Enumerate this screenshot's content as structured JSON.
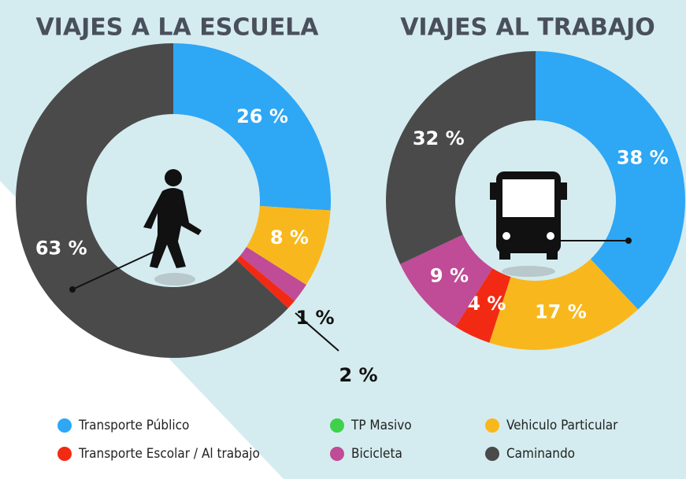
{
  "chart_data": [
    {
      "type": "pie",
      "title": "VIAJES A LA ESCUELA",
      "values": [
        26,
        8,
        2,
        1,
        63
      ],
      "value_labels": [
        "26 %",
        "8 %",
        "2 %",
        "1 %",
        "63 %"
      ],
      "colors": [
        "#2ea7f5",
        "#f8b81d",
        "#c04b96",
        "#f22a14",
        "#4a4a4a"
      ]
    },
    {
      "type": "pie",
      "title": "VIAJES AL TRABAJO",
      "values": [
        38,
        17,
        4,
        9,
        32
      ],
      "value_labels": [
        "38 %",
        "17 %",
        "4 %",
        "9 %",
        "32 %"
      ],
      "colors": [
        "#2ea7f5",
        "#f8b81d",
        "#f22a14",
        "#c04b96",
        "#4a4a4a"
      ]
    }
  ],
  "legend": [
    {
      "name": "Transporte Público",
      "color": "#2ea7f5"
    },
    {
      "name": "TP Masivo",
      "color": "#3fd14a"
    },
    {
      "name": "Vehiculo Particular",
      "color": "#f8b81d"
    },
    {
      "name": "Transporte Escolar / Al trabajo",
      "color": "#f22a14"
    },
    {
      "name": "Bicicleta",
      "color": "#c04b96"
    },
    {
      "name": "Caminando",
      "color": "#4a4a4a"
    }
  ]
}
